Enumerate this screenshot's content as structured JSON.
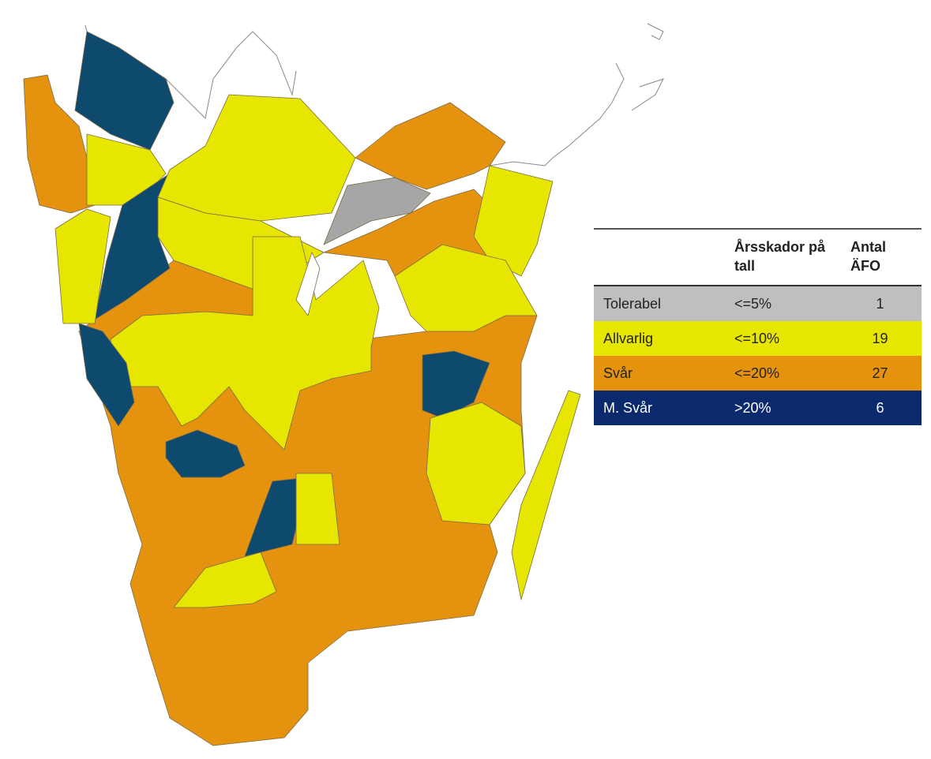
{
  "legend_table": {
    "columns": [
      "Årsskador på tall",
      "Antal ÄFO"
    ],
    "rows": [
      {
        "label": "Tolerabel",
        "range": "<=5%",
        "count": 1,
        "color": "#bfbfbf"
      },
      {
        "label": "Allvarlig",
        "range": "<=10%",
        "count": 19,
        "color": "#e6e600"
      },
      {
        "label": "Svår",
        "range": "<=20%",
        "count": 27,
        "color": "#e5930e"
      },
      {
        "label": "M. Svår",
        "range": ">20%",
        "count": 6,
        "color": "#0b2a6e"
      }
    ]
  }
}
